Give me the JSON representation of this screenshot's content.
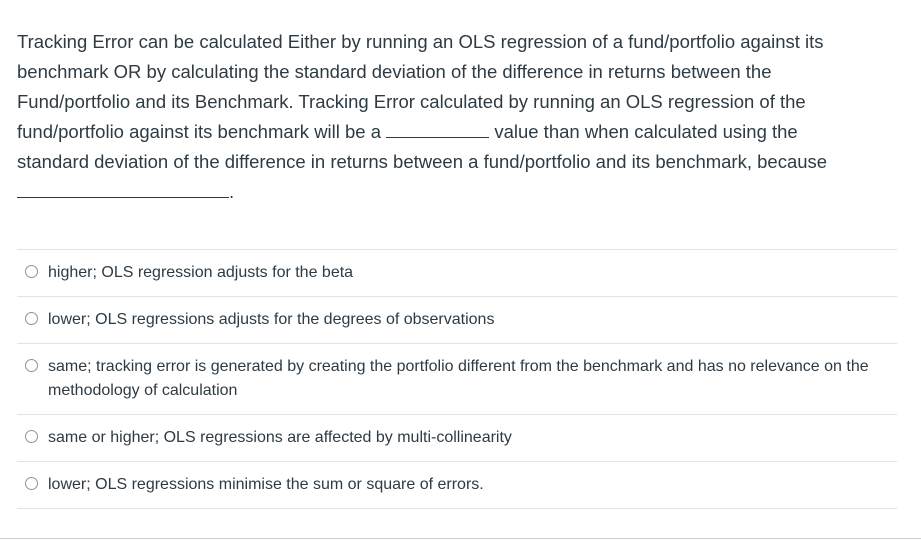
{
  "question": {
    "line1": "Tracking Error can be calculated Either by running an OLS regression of a fund/portfolio against its",
    "line2": "benchmark OR by calculating the standard deviation of the difference in returns between the",
    "line3": "Fund/portfolio and its Benchmark. Tracking Error calculated by running an OLS regression of the",
    "line4a": "fund/portfolio against its benchmark will be a",
    "line4b": "value than when calculated using the",
    "line5": "standard deviation of the difference in returns between a fund/portfolio and its benchmark, because",
    "line6_end": "."
  },
  "answers": [
    {
      "label": "higher; OLS regression adjusts for the beta"
    },
    {
      "label": "lower; OLS regressions adjusts for the degrees of observations"
    },
    {
      "label": "same; tracking error is generated by creating the portfolio different from the benchmark and has no relevance on the methodology of calculation"
    },
    {
      "label": "same or higher; OLS regressions are affected by multi-collinearity"
    },
    {
      "label": "lower; OLS regressions minimise the sum or square of errors."
    }
  ]
}
